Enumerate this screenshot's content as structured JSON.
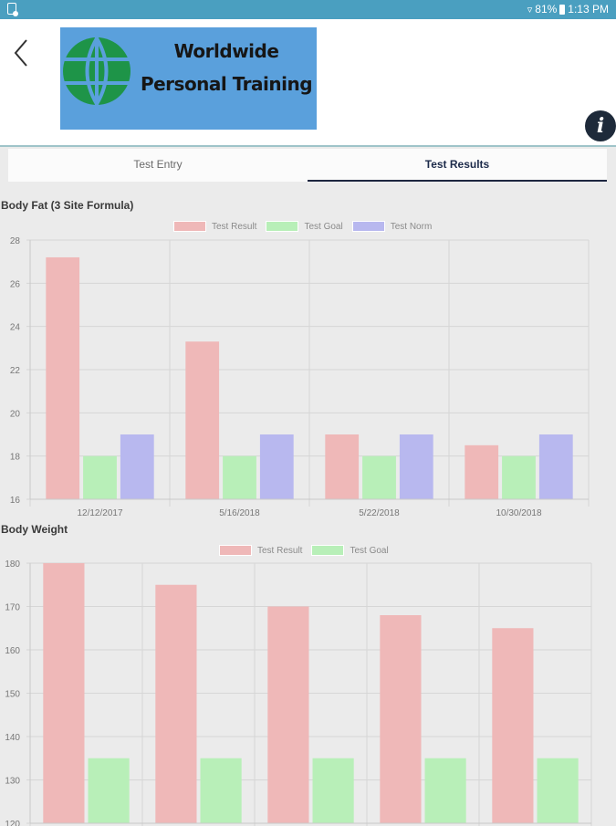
{
  "status_bar": {
    "battery": "81%",
    "time": "1:13 PM"
  },
  "header": {
    "logo_line1": "Worldwide",
    "logo_line2": "Personal Training",
    "info_label": "i"
  },
  "tabs": [
    {
      "label": "Test Entry",
      "active": false
    },
    {
      "label": "Test Results",
      "active": true
    }
  ],
  "colors": {
    "status_bar": "#4a9fc0",
    "logo_bg": "#5aa0dc",
    "globe": "#1e9448",
    "test_result": "#efb8b8",
    "test_goal": "#b8efb8",
    "test_norm": "#b8b8ef",
    "tab_active": "#1d2640"
  },
  "chart_data": [
    {
      "type": "bar",
      "title": "Body Fat (3 Site Formula)",
      "categories": [
        "12/12/2017",
        "5/16/2018",
        "5/22/2018",
        "10/30/2018"
      ],
      "series": [
        {
          "name": "Test Result",
          "values": [
            27.2,
            23.3,
            19,
            18.5
          ]
        },
        {
          "name": "Test Goal",
          "values": [
            18,
            18,
            18,
            18
          ]
        },
        {
          "name": "Test Norm",
          "values": [
            19,
            19,
            19,
            19
          ]
        }
      ],
      "ylim": [
        16,
        28
      ],
      "yticks": [
        16,
        18,
        20,
        22,
        24,
        26,
        28
      ],
      "grid": true,
      "legend": "top-center"
    },
    {
      "type": "bar",
      "title": "Body Weight",
      "categories": [
        "",
        "",
        "",
        "",
        ""
      ],
      "series": [
        {
          "name": "Test Result",
          "values": [
            180,
            175,
            170,
            168,
            165
          ]
        },
        {
          "name": "Test Goal",
          "values": [
            135,
            135,
            135,
            135,
            135
          ]
        }
      ],
      "ylim": [
        120,
        180
      ],
      "yticks": [
        120,
        130,
        140,
        150,
        160,
        170,
        180
      ],
      "grid": true,
      "legend": "top-center"
    }
  ]
}
